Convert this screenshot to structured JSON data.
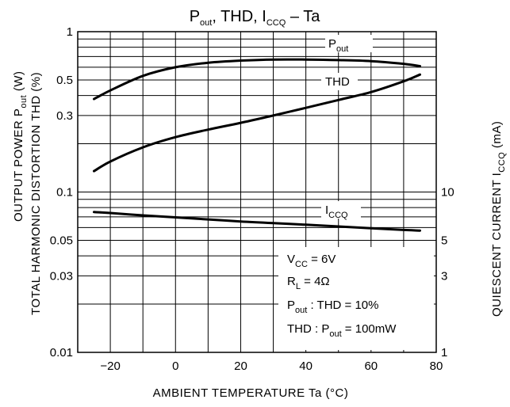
{
  "chart_data": {
    "type": "line",
    "title": {
      "main": "P",
      "sub1": "out",
      "mid1": ", THD, I",
      "sub2": "CCQ",
      "tail": "  –  Ta"
    },
    "xlabel": "AMBIENT TEMPERATURE    Ta    (°C)",
    "ylabel_left_1": "OUTPUT POWER   P",
    "ylabel_left_1_sub": "out",
    "ylabel_left_1_tail": "   (W)",
    "ylabel_left_2": "TOTAL HARMONIC DISTORTION   THD    (%)",
    "ylabel_right": "QUIESCENT CURRENT   I",
    "ylabel_right_sub": "CCQ",
    "ylabel_right_tail": "    (mA)",
    "x_ticks": [
      "−20",
      "0",
      "20",
      "40",
      "60",
      "80"
    ],
    "x_tick_values": [
      -20,
      0,
      20,
      40,
      60,
      80
    ],
    "xlim": [
      -30,
      80
    ],
    "ylim_left": [
      0.01,
      1
    ],
    "y_scale": "log",
    "y_ticks_left": [
      "1",
      "0.5",
      "0.3",
      "0.1",
      "0.05",
      "0.03",
      "0.01"
    ],
    "y_tick_values_left": [
      1,
      0.5,
      0.3,
      0.1,
      0.05,
      0.03,
      0.01
    ],
    "ylim_right": [
      1,
      10
    ],
    "y_ticks_right": [
      "10",
      "5",
      "3",
      "1"
    ],
    "y_tick_values_right": [
      10,
      5,
      3,
      1
    ],
    "grid": true,
    "series": [
      {
        "name": "P",
        "name_sub": "out",
        "axis": "left",
        "x": [
          -25,
          -20,
          -10,
          0,
          10,
          20,
          30,
          40,
          50,
          60,
          70,
          75
        ],
        "y": [
          0.38,
          0.43,
          0.53,
          0.6,
          0.64,
          0.66,
          0.67,
          0.67,
          0.665,
          0.655,
          0.63,
          0.61
        ]
      },
      {
        "name": "THD",
        "name_sub": "",
        "axis": "left",
        "x": [
          -25,
          -20,
          -10,
          0,
          10,
          20,
          30,
          40,
          50,
          60,
          70,
          75
        ],
        "y": [
          0.135,
          0.155,
          0.19,
          0.22,
          0.245,
          0.27,
          0.3,
          0.335,
          0.375,
          0.42,
          0.49,
          0.54
        ]
      },
      {
        "name": "I",
        "name_sub": "CCQ",
        "axis": "right",
        "x": [
          -25,
          -20,
          -10,
          0,
          10,
          20,
          30,
          40,
          50,
          60,
          70,
          75
        ],
        "y": [
          7.5,
          7.4,
          7.15,
          6.95,
          6.75,
          6.55,
          6.4,
          6.25,
          6.1,
          5.95,
          5.8,
          5.75
        ]
      }
    ],
    "conditions": [
      {
        "main": "V",
        "sub": "CC",
        "tail": " = 6V"
      },
      {
        "main": "R",
        "sub": "L",
        "tail": " = 4Ω"
      },
      {
        "main": "P",
        "sub": "out",
        "tail": "  : THD = 10%"
      },
      {
        "main": "THD  :  P",
        "sub": "out",
        "tail": " = 100mW"
      }
    ]
  }
}
